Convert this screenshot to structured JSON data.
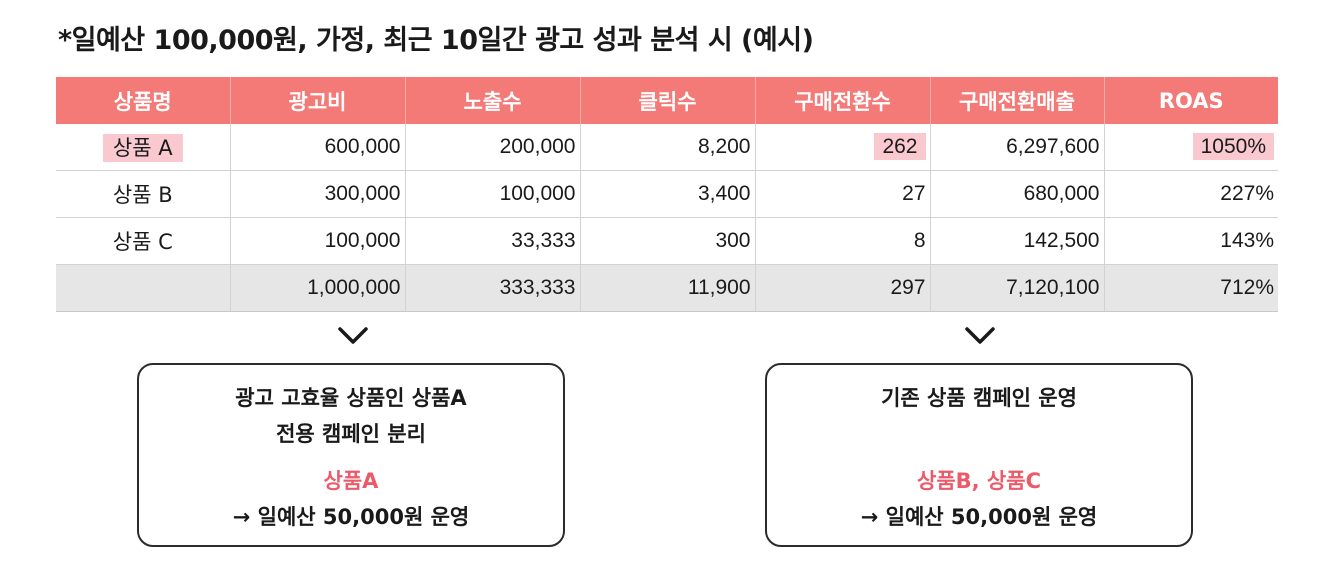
{
  "title": "*일예산 100,000원, 가정, 최근 10일간 광고 성과 분석 시 (예시)",
  "table": {
    "headers": [
      "상품명",
      "광고비",
      "노출수",
      "클릭수",
      "구매전환수",
      "구매전환매출",
      "ROAS"
    ],
    "rows": [
      [
        "상품 A",
        "600,000",
        "200,000",
        "8,200",
        "262",
        "6,297,600",
        "1050%"
      ],
      [
        "상품 B",
        "300,000",
        "100,000",
        "3,400",
        "27",
        "680,000",
        "227%"
      ],
      [
        "상품 C",
        "100,000",
        "33,333",
        "300",
        "8",
        "142,500",
        "143%"
      ]
    ],
    "total": [
      "",
      "1,000,000",
      "333,333",
      "11,900",
      "297",
      "7,120,100",
      "712%"
    ]
  },
  "colors": {
    "header": "#f47a78",
    "highlight": "#f9c9cf",
    "total_row": "#e6e6e6",
    "accent_text": "#ec5a6a"
  },
  "left_box": {
    "line1": "광고 고효율 상품인 상품A",
    "line2": "전용 캠페인 분리",
    "product": "상품A",
    "budget": "→ 일예산 50,000원 운영"
  },
  "right_box": {
    "line1": "기존 상품 캠페인 운영",
    "product": "상품B, 상품C",
    "budget": "→ 일예산 50,000원 운영"
  },
  "icons": {
    "arrow": "chevron-down-icon"
  }
}
